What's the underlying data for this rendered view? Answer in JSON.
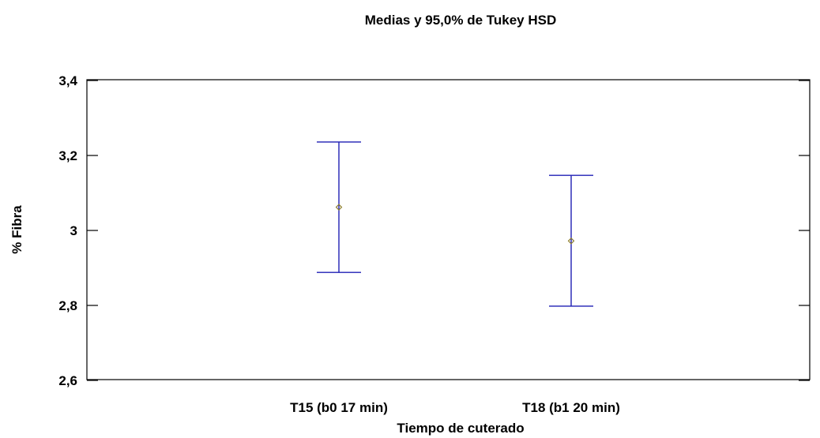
{
  "chart_data": {
    "type": "errorbar",
    "title": "Medias y 95,0% de Tukey HSD",
    "xlabel": "Tiempo de cuterado",
    "ylabel": "% Fibra",
    "ylim": [
      2.6,
      3.4
    ],
    "yticks": [
      {
        "value": 2.6,
        "label": "2,6"
      },
      {
        "value": 2.8,
        "label": "2,8"
      },
      {
        "value": 3.0,
        "label": "3"
      },
      {
        "value": 3.2,
        "label": "3,2"
      },
      {
        "value": 3.4,
        "label": "3,4"
      }
    ],
    "categories": [
      "T15 (b0 17 min)",
      "T18 (b1 20 min)"
    ],
    "series": [
      {
        "points": [
          {
            "category": "T15 (b0 17 min)",
            "mean": 3.062,
            "lower": 2.888,
            "upper": 3.236
          },
          {
            "category": "T18 (b1 20 min)",
            "mean": 2.972,
            "lower": 2.798,
            "upper": 3.147
          }
        ]
      }
    ],
    "colors": {
      "errorbar": "#1f1fb4",
      "mean_marker": "#8a7a2a"
    },
    "grid": false,
    "legend": "none"
  }
}
